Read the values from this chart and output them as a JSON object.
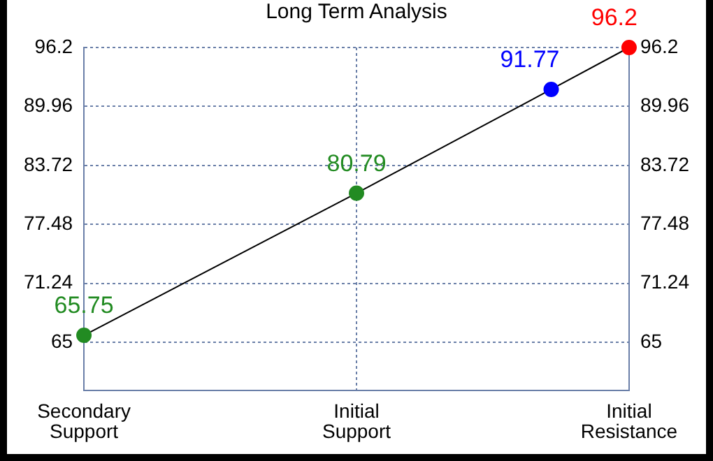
{
  "chart_data": {
    "type": "line",
    "title": "Long Term Analysis",
    "categories": [
      "Secondary Support",
      null,
      null,
      null,
      null,
      null,
      null,
      "Initial Support",
      null,
      null,
      null,
      null,
      null,
      null,
      "Initial Resistance"
    ],
    "series": [
      {
        "color": "#000000",
        "colors": [
          "#228b22",
          null,
          null,
          null,
          null,
          null,
          null,
          "#228b22",
          null,
          null,
          null,
          null,
          "#0000ff",
          null,
          "#ff0000"
        ],
        "values": [
          65.75,
          null,
          null,
          null,
          null,
          null,
          null,
          80.79,
          null,
          null,
          null,
          null,
          91.77,
          null,
          96.2
        ]
      }
    ],
    "ylim": [
      59.9,
      96.2
    ],
    "yticks": [
      65,
      71.24,
      77.48,
      83.72,
      89.96,
      96.2
    ],
    "y2lim": [
      59.9,
      96.2
    ],
    "y2ticks": [
      65,
      71.24,
      77.48,
      83.72,
      89.96,
      96.2
    ],
    "grid": true,
    "marker": "circle",
    "line_style": "solid",
    "data_labels": true
  }
}
